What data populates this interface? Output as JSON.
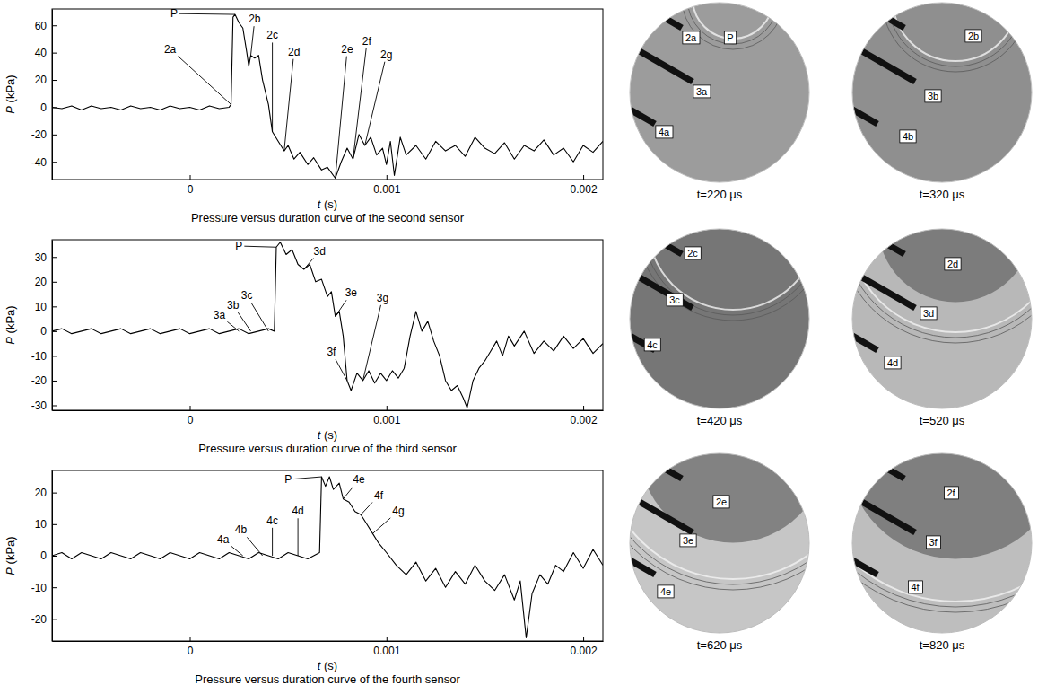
{
  "chart_data": [
    {
      "type": "line",
      "title": "Pressure versus duration curve of the second sensor",
      "x_label": "t (s)",
      "y_label": "P (kPa)",
      "color": "#000000",
      "xlim": [
        -0.0007,
        0.0021
      ],
      "ylim": [
        -53,
        72
      ],
      "xticks": [
        0,
        0.001,
        0.002
      ],
      "yticks": [
        -40,
        -20,
        0,
        20,
        40,
        60
      ],
      "x": [
        -0.0007,
        -0.00065,
        -0.0006,
        -0.00055,
        -0.0005,
        -0.00045,
        -0.0004,
        -0.00035,
        -0.0003,
        -0.00025,
        -0.0002,
        -0.00015,
        -0.0001,
        -5e-05,
        0,
        5e-05,
        0.0001,
        0.00015,
        0.0002,
        0.00021,
        0.00022,
        0.00023,
        0.00025,
        0.00027,
        0.00029,
        0.0003,
        0.00031,
        0.00033,
        0.00035,
        0.00037,
        0.0004,
        0.00042,
        0.00045,
        0.00048,
        0.0005,
        0.00053,
        0.00056,
        0.0006,
        0.00063,
        0.00067,
        0.0007,
        0.00074,
        0.00077,
        0.0008,
        0.00083,
        0.00086,
        0.00089,
        0.00092,
        0.00095,
        0.00098,
        0.001,
        0.00102,
        0.00104,
        0.00107,
        0.0011,
        0.00115,
        0.0012,
        0.00125,
        0.0013,
        0.00135,
        0.0014,
        0.00145,
        0.0015,
        0.00155,
        0.0016,
        0.00165,
        0.0017,
        0.00175,
        0.0018,
        0.00185,
        0.0019,
        0.00195,
        0.002,
        0.00205,
        0.0021
      ],
      "values": [
        0,
        -1,
        1,
        -2,
        1,
        -1,
        0,
        -2,
        1,
        -1,
        0,
        -2,
        1,
        -1,
        0,
        -2,
        1,
        -1,
        0,
        2,
        66,
        68,
        62,
        58,
        40,
        30,
        38,
        36,
        38,
        20,
        2,
        -18,
        -25,
        -32,
        -28,
        -38,
        -33,
        -42,
        -37,
        -46,
        -44,
        -52,
        -40,
        -30,
        -38,
        -20,
        -28,
        -22,
        -35,
        -30,
        -42,
        -25,
        -50,
        -22,
        -35,
        -28,
        -38,
        -25,
        -32,
        -28,
        -36,
        -22,
        -30,
        -34,
        -26,
        -38,
        -28,
        -32,
        -24,
        -35,
        -30,
        -40,
        -28,
        -33,
        -25
      ],
      "annotations": [
        {
          "text": "P",
          "xy": [
            0.00023,
            68
          ],
          "xytext": [
            -8e-05,
            66
          ]
        },
        {
          "text": "2a",
          "xy": [
            0.00021,
            2
          ],
          "xytext": [
            -0.0001,
            40
          ]
        },
        {
          "text": "2b",
          "xy": [
            0.00031,
            38
          ],
          "xytext": [
            0.00033,
            62
          ]
        },
        {
          "text": "2c",
          "xy": [
            0.00042,
            -18
          ],
          "xytext": [
            0.00042,
            50
          ]
        },
        {
          "text": "2d",
          "xy": [
            0.00048,
            -32
          ],
          "xytext": [
            0.00053,
            38
          ]
        },
        {
          "text": "2e",
          "xy": [
            0.00074,
            -52
          ],
          "xytext": [
            0.0008,
            40
          ]
        },
        {
          "text": "2f",
          "xy": [
            0.00083,
            -38
          ],
          "xytext": [
            0.0009,
            46
          ]
        },
        {
          "text": "2g",
          "xy": [
            0.00089,
            -28
          ],
          "xytext": [
            0.001,
            36
          ]
        }
      ]
    },
    {
      "type": "line",
      "title": "Pressure versus duration curve of the third sensor",
      "x_label": "t (s)",
      "y_label": "P (kPa)",
      "color": "#000000",
      "xlim": [
        -0.0007,
        0.0021
      ],
      "ylim": [
        -32,
        37
      ],
      "xticks": [
        0,
        0.001,
        0.002
      ],
      "yticks": [
        -30,
        -20,
        -10,
        0,
        10,
        20,
        30
      ],
      "x": [
        -0.0007,
        -0.00065,
        -0.0006,
        -0.00055,
        -0.0005,
        -0.00045,
        -0.0004,
        -0.00035,
        -0.0003,
        -0.00025,
        -0.0002,
        -0.00015,
        -0.0001,
        -5e-05,
        0,
        5e-05,
        0.0001,
        0.00015,
        0.0002,
        0.00025,
        0.0003,
        0.00035,
        0.0004,
        0.00043,
        0.00044,
        0.00046,
        0.00049,
        0.00052,
        0.00055,
        0.00058,
        0.00061,
        0.00064,
        0.00067,
        0.0007,
        0.00072,
        0.00074,
        0.00076,
        0.00078,
        0.0008,
        0.00082,
        0.00085,
        0.00088,
        0.00091,
        0.00094,
        0.00097,
        0.001,
        0.00103,
        0.00106,
        0.00109,
        0.00112,
        0.00115,
        0.00118,
        0.00121,
        0.00124,
        0.00127,
        0.0013,
        0.00133,
        0.00136,
        0.00139,
        0.00141,
        0.00144,
        0.00147,
        0.0015,
        0.00153,
        0.00156,
        0.00159,
        0.00162,
        0.00165,
        0.0017,
        0.00175,
        0.0018,
        0.00185,
        0.0019,
        0.00195,
        0.002,
        0.00205,
        0.0021
      ],
      "values": [
        0,
        1,
        -1,
        0,
        1,
        -1,
        0,
        1,
        -1,
        0,
        1,
        -1,
        0,
        1,
        -1,
        0,
        1,
        -1,
        0,
        1,
        -1,
        0,
        1,
        0,
        34,
        36,
        31,
        33,
        27,
        25,
        27,
        20,
        21,
        14,
        16,
        6,
        8,
        -2,
        -20,
        -24,
        -17,
        -20,
        -16,
        -21,
        -17,
        -20,
        -16,
        -19,
        -15,
        -2,
        8,
        0,
        4,
        -4,
        -10,
        -20,
        -24,
        -22,
        -27,
        -31,
        -20,
        -15,
        -12,
        -8,
        -4,
        -10,
        -2,
        -6,
        0,
        -9,
        -4,
        -8,
        -2,
        -7,
        -3,
        -9,
        -5
      ],
      "annotations": [
        {
          "text": "P",
          "xy": [
            0.00044,
            34
          ],
          "xytext": [
            0.00025,
            33
          ]
        },
        {
          "text": "3a",
          "xy": [
            0.00025,
            0
          ],
          "xytext": [
            0.00015,
            5
          ]
        },
        {
          "text": "3b",
          "xy": [
            0.00031,
            0
          ],
          "xytext": [
            0.00022,
            9
          ]
        },
        {
          "text": "3c",
          "xy": [
            0.0004,
            0
          ],
          "xytext": [
            0.00029,
            13
          ]
        },
        {
          "text": "3d",
          "xy": [
            0.00058,
            25
          ],
          "xytext": [
            0.00066,
            31
          ]
        },
        {
          "text": "3e",
          "xy": [
            0.00074,
            6
          ],
          "xytext": [
            0.00082,
            14
          ]
        },
        {
          "text": "3f",
          "xy": [
            0.0008,
            -20
          ],
          "xytext": [
            0.00072,
            -10
          ]
        },
        {
          "text": "3g",
          "xy": [
            0.00088,
            -20
          ],
          "xytext": [
            0.00098,
            12
          ]
        }
      ]
    },
    {
      "type": "line",
      "title": "Pressure versus duration curve of the fourth sensor",
      "x_label": "t (s)",
      "y_label": "P (kPa)",
      "color": "#000000",
      "xlim": [
        -0.0007,
        0.0021
      ],
      "ylim": [
        -27,
        27
      ],
      "xticks": [
        0,
        0.001,
        0.002
      ],
      "yticks": [
        -20,
        -10,
        0,
        10,
        20
      ],
      "x": [
        -0.0007,
        -0.00065,
        -0.0006,
        -0.00055,
        -0.0005,
        -0.00045,
        -0.0004,
        -0.00035,
        -0.0003,
        -0.00025,
        -0.0002,
        -0.00015,
        -0.0001,
        -5e-05,
        0,
        5e-05,
        0.0001,
        0.00015,
        0.0002,
        0.00025,
        0.0003,
        0.00035,
        0.0004,
        0.00045,
        0.0005,
        0.00055,
        0.0006,
        0.00066,
        0.00067,
        0.00069,
        0.00071,
        0.00073,
        0.00076,
        0.00078,
        0.00081,
        0.00084,
        0.00087,
        0.0009,
        0.00093,
        0.00096,
        0.001,
        0.00105,
        0.0011,
        0.00115,
        0.0012,
        0.00125,
        0.0013,
        0.00135,
        0.0014,
        0.00145,
        0.0015,
        0.00155,
        0.0016,
        0.00165,
        0.00168,
        0.00171,
        0.00174,
        0.00178,
        0.00182,
        0.00186,
        0.0019,
        0.00195,
        0.002,
        0.00205,
        0.0021
      ],
      "values": [
        0,
        1,
        -1,
        1,
        0,
        -1,
        1,
        0,
        -1,
        1,
        0,
        -1,
        1,
        0,
        -1,
        1,
        0,
        -1,
        1,
        0,
        -1,
        1,
        0,
        -1,
        1,
        0,
        -1,
        1,
        25,
        22,
        25,
        21,
        23,
        18,
        17,
        14,
        13,
        10,
        7,
        4,
        1,
        -3,
        -6,
        -2,
        -8,
        -4,
        -10,
        -5,
        -9,
        -3,
        -8,
        -11,
        -6,
        -14,
        -8,
        -26,
        -12,
        -6,
        -9,
        -3,
        -5,
        1,
        -4,
        2,
        -3
      ],
      "annotations": [
        {
          "text": "P",
          "xy": [
            0.00067,
            25
          ],
          "xytext": [
            0.0005,
            23
          ]
        },
        {
          "text": "4a",
          "xy": [
            0.00027,
            0
          ],
          "xytext": [
            0.00017,
            4
          ]
        },
        {
          "text": "4b",
          "xy": [
            0.00037,
            0
          ],
          "xytext": [
            0.00026,
            7
          ]
        },
        {
          "text": "4c",
          "xy": [
            0.00042,
            0
          ],
          "xytext": [
            0.00042,
            10
          ]
        },
        {
          "text": "4d",
          "xy": [
            0.00055,
            0
          ],
          "xytext": [
            0.00055,
            13
          ]
        },
        {
          "text": "4e",
          "xy": [
            0.00078,
            18
          ],
          "xytext": [
            0.00086,
            23
          ]
        },
        {
          "text": "4f",
          "xy": [
            0.00087,
            13
          ],
          "xytext": [
            0.00096,
            18
          ]
        },
        {
          "text": "4g",
          "xy": [
            0.00093,
            7
          ],
          "xytext": [
            0.00106,
            13
          ]
        }
      ]
    }
  ],
  "images": [
    {
      "caption": "t=220 μs",
      "labels": [
        "2a",
        "P",
        "3a",
        "4a"
      ]
    },
    {
      "caption": "t=320 μs",
      "labels": [
        "2b",
        "3b",
        "4b"
      ]
    },
    {
      "caption": "t=420 μs",
      "labels": [
        "2c",
        "3c",
        "4c"
      ]
    },
    {
      "caption": "t=520 μs",
      "labels": [
        "2d",
        "3d",
        "4d"
      ]
    },
    {
      "caption": "t=620 μs",
      "labels": [
        "2e",
        "3e",
        "4e"
      ]
    },
    {
      "caption": "t=820 μs",
      "labels": [
        "2f",
        "3f",
        "4f"
      ]
    }
  ]
}
